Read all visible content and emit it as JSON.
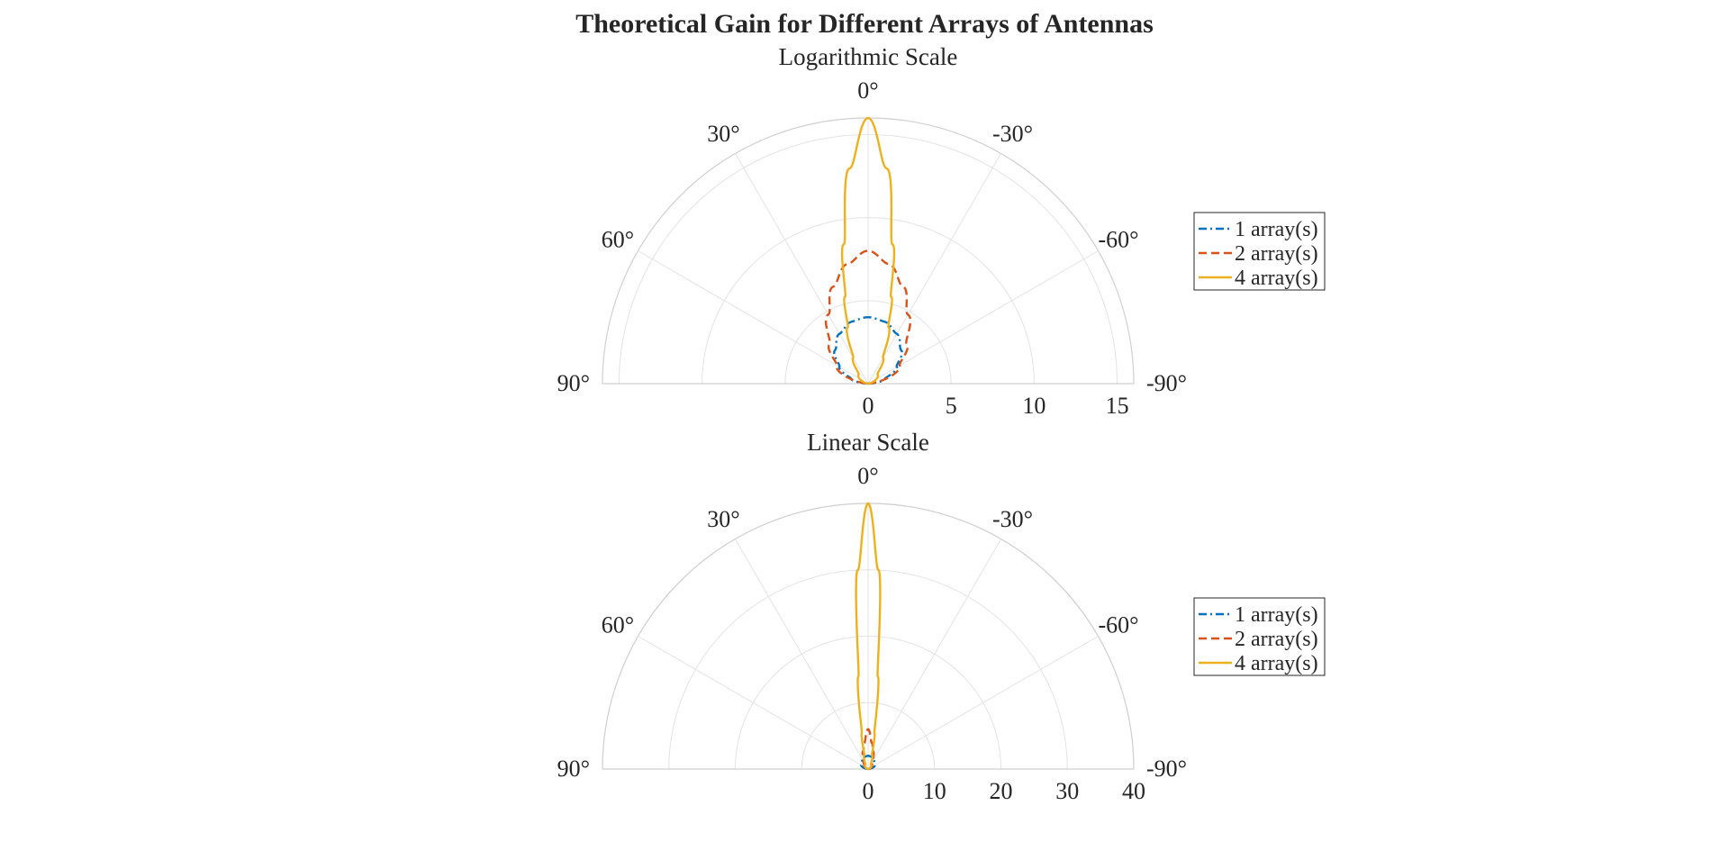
{
  "figure": {
    "title": "Theoretical Gain for Different Arrays of Antennas"
  },
  "legend_colors": {
    "1": "#0072BD",
    "2": "#D95319",
    "4": "#EDB120"
  },
  "chart_data": [
    {
      "type": "polar-line",
      "subtitle": "Logarithmic Scale",
      "theta_range_deg": [
        -90,
        90
      ],
      "theta_ticks": [
        "0°",
        "30°",
        "-30°",
        "60°",
        "-60°",
        "90°",
        "-90°"
      ],
      "rlim": [
        0,
        16
      ],
      "r_ticks": [
        "0",
        "5",
        "10",
        "15"
      ],
      "grid": true,
      "legend_location": "right",
      "series": [
        {
          "name": "1 array(s)",
          "style": "dashdot",
          "color": "#0072BD",
          "theta_deg": [
            -90,
            -75,
            -60,
            -45,
            -30,
            -15,
            0,
            15,
            30,
            45,
            60,
            75,
            90
          ],
          "r": [
            0,
            1.04,
            2.0,
            2.83,
            3.46,
            3.86,
            4.0,
            3.86,
            3.46,
            2.83,
            2.0,
            1.04,
            0
          ]
        },
        {
          "name": "2 array(s)",
          "style": "dashed",
          "color": "#D95319",
          "theta_deg": [
            -90,
            -60,
            -45,
            -30,
            -20,
            -10,
            0,
            10,
            20,
            30,
            45,
            60,
            90
          ],
          "r": [
            0,
            2.2,
            3.3,
            4.8,
            6.2,
            7.3,
            8.0,
            7.3,
            6.2,
            4.8,
            3.3,
            2.2,
            0
          ]
        },
        {
          "name": "4 array(s)",
          "style": "solid",
          "color": "#EDB120",
          "theta_deg": [
            -90,
            -45,
            -30,
            -20,
            -15,
            -10,
            -5,
            0,
            5,
            10,
            15,
            20,
            30,
            45,
            90
          ],
          "r": [
            0,
            0.8,
            1.8,
            3.6,
            5.4,
            8.5,
            13.0,
            16.0,
            13.0,
            8.5,
            5.4,
            3.6,
            1.8,
            0.8,
            0
          ]
        }
      ]
    },
    {
      "type": "polar-line",
      "subtitle": "Linear Scale",
      "theta_range_deg": [
        -90,
        90
      ],
      "theta_ticks": [
        "0°",
        "30°",
        "-30°",
        "60°",
        "-60°",
        "90°",
        "-90°"
      ],
      "rlim": [
        0,
        40
      ],
      "r_ticks": [
        "0",
        "10",
        "20",
        "30",
        "40"
      ],
      "grid": true,
      "legend_location": "right",
      "series": [
        {
          "name": "1 array(s)",
          "style": "dashdot",
          "color": "#0072BD",
          "theta_deg": [
            -90,
            -60,
            -45,
            -30,
            -15,
            0,
            15,
            30,
            45,
            60,
            90
          ],
          "r": [
            0,
            1.2,
            1.4,
            1.6,
            1.9,
            2.0,
            1.9,
            1.6,
            1.4,
            1.2,
            0
          ]
        },
        {
          "name": "2 array(s)",
          "style": "dashed",
          "color": "#D95319",
          "theta_deg": [
            -90,
            -45,
            -30,
            -15,
            -8,
            0,
            8,
            15,
            30,
            45,
            90
          ],
          "r": [
            0,
            0.8,
            1.4,
            2.8,
            4.0,
            6.0,
            4.0,
            2.8,
            1.4,
            0.8,
            0
          ]
        },
        {
          "name": "4 array(s)",
          "style": "solid",
          "color": "#EDB120",
          "theta_deg": [
            -90,
            -30,
            -15,
            -10,
            -6,
            -3,
            0,
            3,
            6,
            10,
            15,
            30,
            90
          ],
          "r": [
            0,
            0.8,
            2.2,
            5.5,
            14.0,
            30.0,
            40.0,
            30.0,
            14.0,
            5.5,
            2.2,
            0.8,
            0
          ]
        }
      ]
    }
  ]
}
